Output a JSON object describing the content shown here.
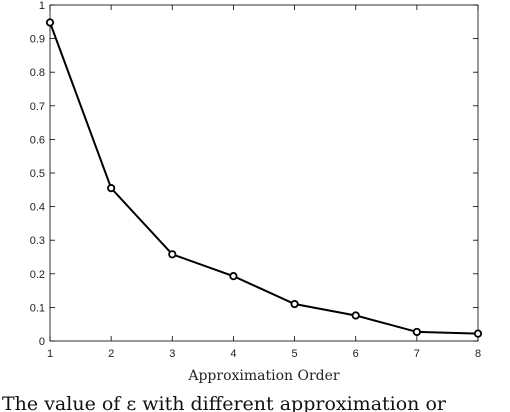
{
  "chart_data": {
    "type": "line",
    "title": "",
    "xlabel": "Approximation Order",
    "ylabel": "",
    "x": [
      1,
      2,
      3,
      4,
      5,
      6,
      7,
      8
    ],
    "series": [
      {
        "values": [
          0.948,
          0.455,
          0.258,
          0.193,
          0.11,
          0.076,
          0.027,
          0.022
        ]
      }
    ],
    "xlim": [
      1,
      8
    ],
    "ylim": [
      0,
      1
    ],
    "xticks": [
      "1",
      "2",
      "3",
      "4",
      "5",
      "6",
      "7",
      "8"
    ],
    "yticks": [
      "0",
      "0.1",
      "0.2",
      "0.3",
      "0.4",
      "0.5",
      "0.6",
      "0.7",
      "0.8",
      "0.9",
      "1"
    ],
    "grid": false,
    "marker": "circle",
    "line_color": "#000000"
  },
  "caption": {
    "text": "The value of ε with different approximation or"
  }
}
